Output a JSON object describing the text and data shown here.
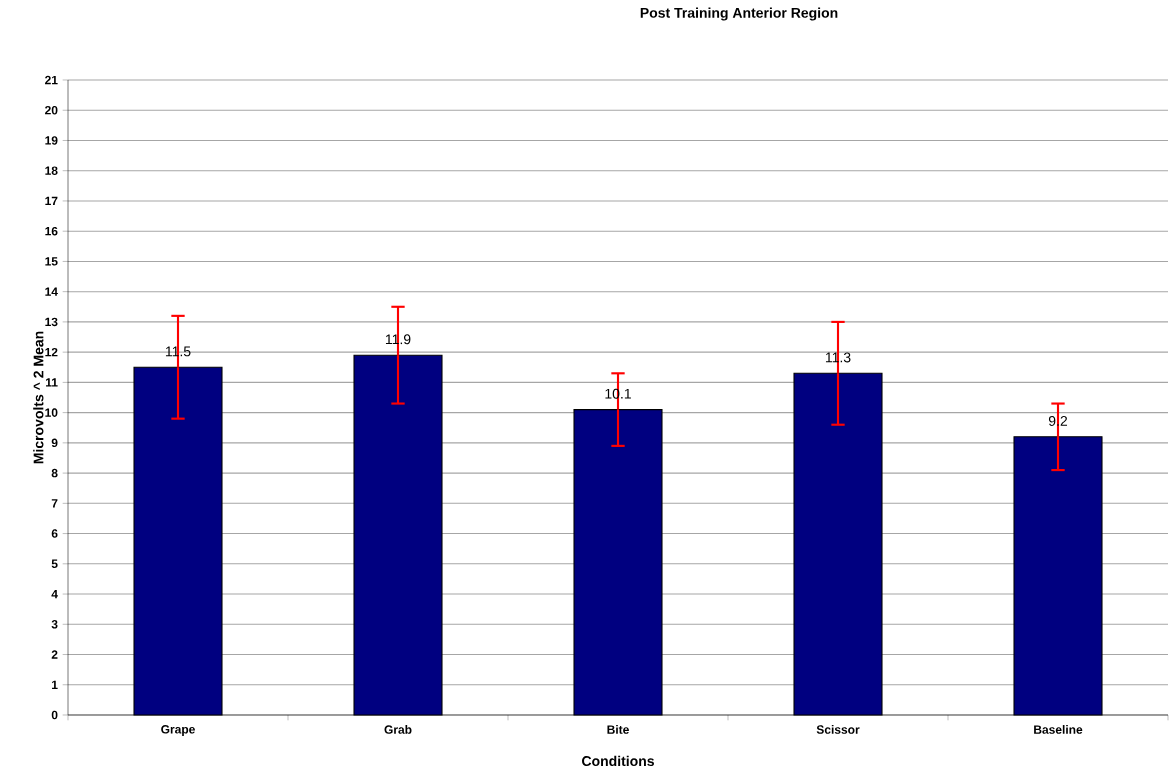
{
  "chart_data": {
    "type": "bar",
    "title": "Post Training Anterior Region",
    "xlabel": "Conditions",
    "ylabel": "Microvolts ^ 2 Mean",
    "categories": [
      "Grape",
      "Grab",
      "Bite",
      "Scissor",
      "Baseline"
    ],
    "values": [
      11.5,
      11.9,
      10.1,
      11.3,
      9.2
    ],
    "errors": [
      1.7,
      1.6,
      1.2,
      1.7,
      1.1
    ],
    "color": "#000080",
    "data_labels": true,
    "ylim": [
      0,
      21
    ],
    "yticks": [
      0,
      1,
      2,
      3,
      4,
      5,
      6,
      7,
      8,
      9,
      10,
      11,
      12,
      13,
      14,
      15,
      16,
      17,
      18,
      19,
      20,
      21
    ],
    "grid": "y"
  }
}
